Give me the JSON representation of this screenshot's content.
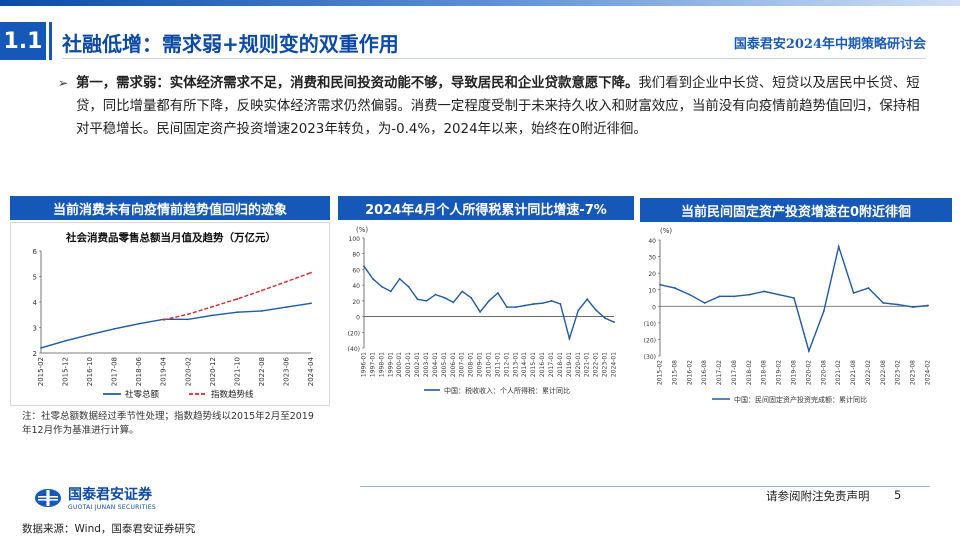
{
  "header": {
    "section_number": "1.1",
    "title": "社融低增：需求弱+规则变的双重作用",
    "event": "国泰君安2024年中期策略研讨会"
  },
  "bullet": {
    "lead": "第一，需求弱：实体经济需求不足，消费和民间投资动能不够，导致居民和企业贷款意愿下降。",
    "body": "我们看到企业中长贷、短贷以及居民中长贷、短贷，同比增量都有所下降，反映实体经济需求仍然偏弱。消费一定程度受制于未来持久收入和财富效应，当前没有向疫情前趋势值回归，保持相对平稳增长。民间固定资产投资增速2023年转负，为-0.4%，2024年以来，始终在0附近徘徊。"
  },
  "panels": {
    "left_title": "当前消费未有向疫情前趋势值回归的迹象",
    "mid_title": "2024年4月个人所得税累计同比增速-7%",
    "right_title": "当前民间固定资产投资增速在0附近徘徊"
  },
  "left_chart_text": {
    "title": "社会消费品零售总额当月值及趋势（万亿元）",
    "legend": [
      "社零总额",
      "指数趋势线"
    ]
  },
  "mid_chart_text": {
    "unit": "(%)",
    "legend": "中国：税收收入：个人所得税：累计同比"
  },
  "right_chart_text": {
    "unit": "(%)",
    "legend": "中国：民间固定资产投资完成额：累计同比"
  },
  "note": "注：社零总额数据经过季节性处理；指数趋势线以2015年2月至2019年12月作为基准进行计算。",
  "footer": {
    "logo_cn": "国泰君安证券",
    "logo_en": "GUOTAI JUNAN SECURITIES",
    "disclaimer": "请参阅附注免责声明",
    "page": "5",
    "source": "数据来源：Wind，国泰君安证券研究"
  },
  "colors": {
    "brand": "#1558b7",
    "series": "#1f5aa6",
    "trend": "#d9262b"
  },
  "chart_data": [
    {
      "type": "line",
      "title": "社会消费品零售总额当月值及趋势（万亿元）",
      "ylim": [
        2,
        6
      ],
      "yticks": [
        2,
        3,
        4,
        5,
        6
      ],
      "x": [
        "2015-02",
        "2015-12",
        "2016-10",
        "2017-08",
        "2018-06",
        "2019-04",
        "2020-02",
        "2020-12",
        "2021-10",
        "2022-08",
        "2023-06",
        "2024-04"
      ],
      "series": [
        {
          "name": "社零总额",
          "values": [
            2.2,
            2.48,
            2.72,
            2.95,
            3.15,
            3.32,
            3.32,
            3.48,
            3.6,
            3.65,
            3.8,
            3.95
          ]
        },
        {
          "name": "指数趋势线",
          "values": [
            null,
            null,
            null,
            null,
            null,
            3.3,
            3.52,
            3.82,
            4.12,
            4.45,
            4.8,
            5.15
          ]
        }
      ],
      "grid": false,
      "legend": "bottom"
    },
    {
      "type": "line",
      "ylim": [
        -40,
        100
      ],
      "yticks": [
        100,
        80,
        60,
        40,
        20,
        0,
        -20,
        -40
      ],
      "ytick_labels": [
        "100",
        "80",
        "60",
        "40",
        "20",
        "0",
        "(20)",
        "(40)"
      ],
      "x": [
        "1996-01",
        "1997-01",
        "1998-01",
        "1999-01",
        "2000-01",
        "2001-01",
        "2002-01",
        "2003-01",
        "2004-01",
        "2005-01",
        "2006-01",
        "2007-01",
        "2008-01",
        "2009-01",
        "2010-01",
        "2011-01",
        "2012-01",
        "2013-01",
        "2014-01",
        "2015-01",
        "2016-01",
        "2017-01",
        "2018-01",
        "2019-01",
        "2020-01",
        "2021-01",
        "2022-01",
        "2023-01",
        "2024-01"
      ],
      "series": [
        {
          "name": "中国：税收收入：个人所得税：累计同比",
          "values": [
            64,
            48,
            38,
            32,
            48,
            38,
            22,
            20,
            28,
            24,
            18,
            32,
            24,
            6,
            20,
            30,
            12,
            12,
            14,
            16,
            17,
            20,
            16,
            -28,
            8,
            22,
            8,
            -2,
            -7
          ]
        }
      ],
      "legend": "bottom"
    },
    {
      "type": "line",
      "ylim": [
        -30,
        40
      ],
      "yticks": [
        40,
        30,
        20,
        10,
        0,
        -10,
        -20,
        -30
      ],
      "ytick_labels": [
        "40",
        "30",
        "20",
        "10",
        "0",
        "(10)",
        "(20)",
        "(30)"
      ],
      "x": [
        "2015-02",
        "2015-08",
        "2016-02",
        "2016-08",
        "2017-02",
        "2017-08",
        "2018-02",
        "2018-08",
        "2019-02",
        "2019-08",
        "2020-02",
        "2020-08",
        "2021-02",
        "2021-08",
        "2022-02",
        "2022-08",
        "2023-02",
        "2023-08",
        "2024-02"
      ],
      "series": [
        {
          "name": "中国：民间固定资产投资完成额：累计同比",
          "values": [
            13,
            11,
            7,
            2,
            6,
            6,
            7,
            9,
            7,
            5,
            -27,
            -3,
            36,
            8,
            11,
            2,
            1,
            -0.5,
            0.5
          ]
        }
      ],
      "legend": "bottom"
    }
  ]
}
